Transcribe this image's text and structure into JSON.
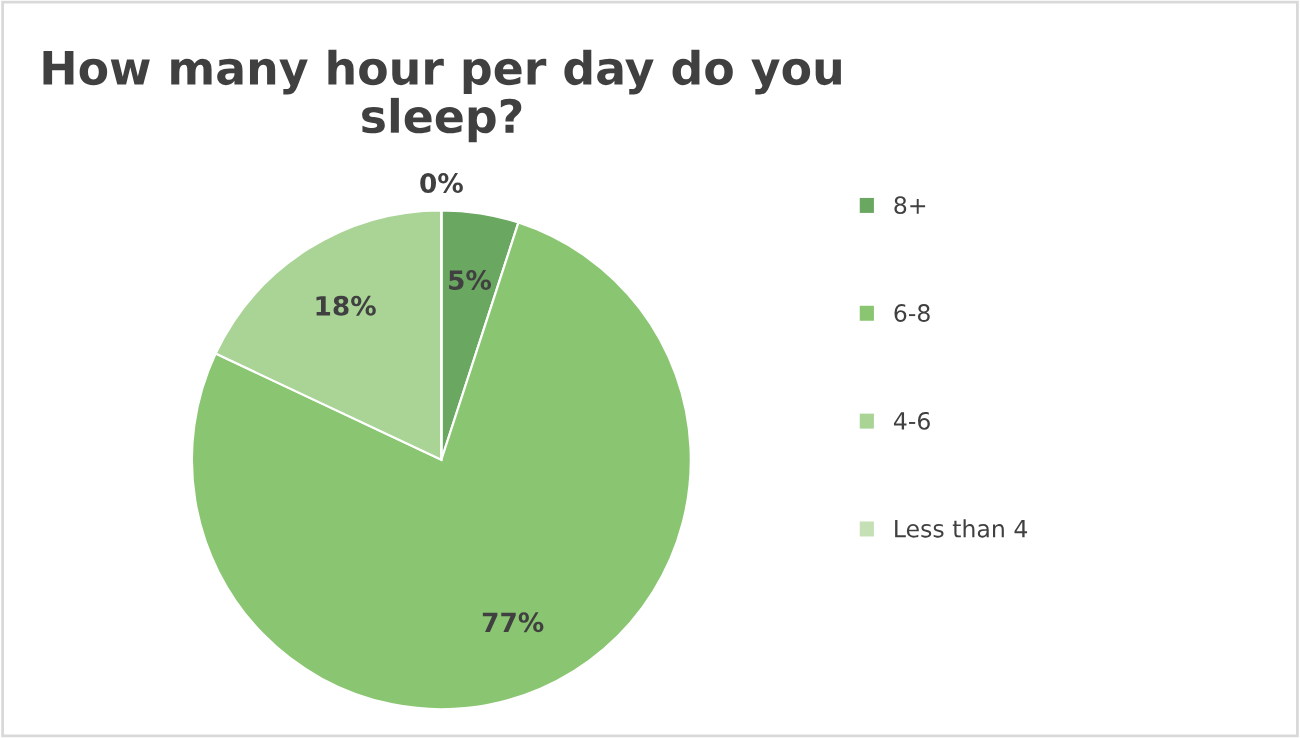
{
  "chart_data": {
    "type": "pie",
    "title": "How many hour per day do you\nsleep?",
    "categories": [
      "8+",
      "6-8",
      "4-6",
      "Less than 4"
    ],
    "values": [
      5,
      77,
      18,
      0
    ],
    "colors": [
      "#6aa760",
      "#8ac672",
      "#a9d496",
      "#c5e0b4"
    ],
    "value_labels": [
      "5%",
      "77%",
      "18%",
      "0%"
    ],
    "legend": "right"
  }
}
